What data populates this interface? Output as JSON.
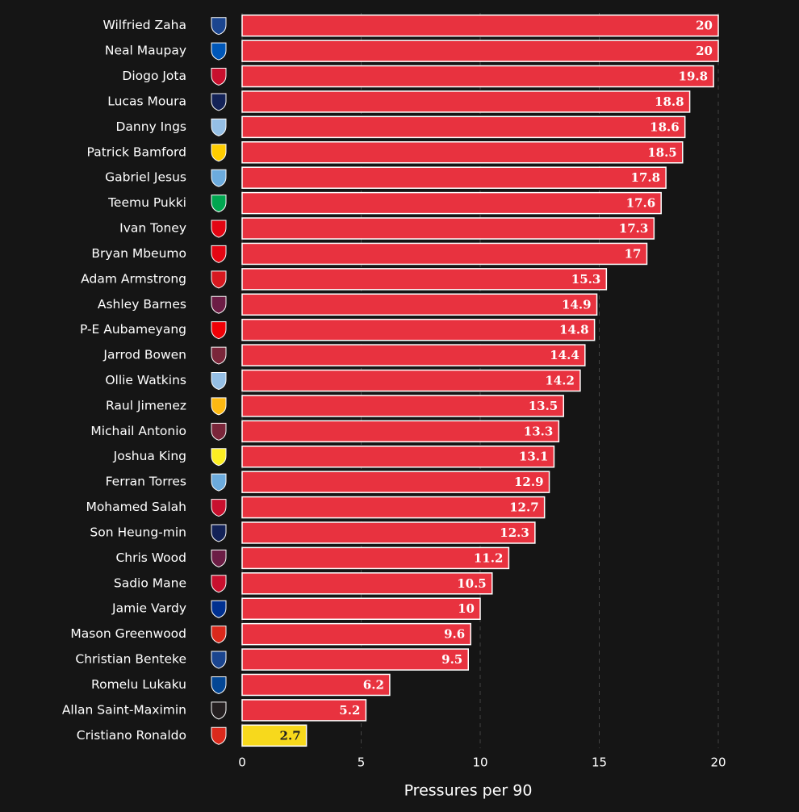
{
  "chart_data": {
    "type": "barh",
    "categories": [
      "Wilfried Zaha",
      "Neal Maupay",
      "Diogo Jota",
      "Lucas Moura",
      "Danny Ings",
      "Patrick Bamford",
      "Gabriel Jesus",
      "Teemu Pukki",
      "Ivan Toney",
      "Bryan Mbeumo",
      "Adam Armstrong",
      "Ashley Barnes",
      "P-E Aubameyang",
      "Jarrod Bowen",
      "Ollie Watkins",
      "Raul Jimenez",
      "Michail Antonio",
      "Joshua King",
      "Ferran Torres",
      "Mohamed Salah",
      "Son Heung-min",
      "Chris Wood",
      "Sadio Mane",
      "Jamie Vardy",
      "Mason Greenwood",
      "Christian Benteke",
      "Romelu Lukaku",
      "Allan Saint-Maximin",
      "Cristiano Ronaldo"
    ],
    "values": [
      20,
      20,
      19.8,
      18.8,
      18.6,
      18.5,
      17.8,
      17.6,
      17.3,
      17,
      15.3,
      14.9,
      14.8,
      14.4,
      14.2,
      13.5,
      13.3,
      13.1,
      12.9,
      12.7,
      12.3,
      11.2,
      10.5,
      10,
      9.6,
      9.5,
      6.2,
      5.2,
      2.7
    ],
    "colors": [
      "#e8323f",
      "#e8323f",
      "#e8323f",
      "#e8323f",
      "#e8323f",
      "#e8323f",
      "#e8323f",
      "#e8323f",
      "#e8323f",
      "#e8323f",
      "#e8323f",
      "#e8323f",
      "#e8323f",
      "#e8323f",
      "#e8323f",
      "#e8323f",
      "#e8323f",
      "#e8323f",
      "#e8323f",
      "#e8323f",
      "#e8323f",
      "#e8323f",
      "#e8323f",
      "#e8323f",
      "#e8323f",
      "#e8323f",
      "#e8323f",
      "#e8323f",
      "#f7d91c"
    ],
    "x_label": "Pressures per 90",
    "xlim": [
      0,
      21
    ],
    "xticks": [
      0,
      5,
      10,
      15,
      20
    ],
    "grid": true
  }
}
